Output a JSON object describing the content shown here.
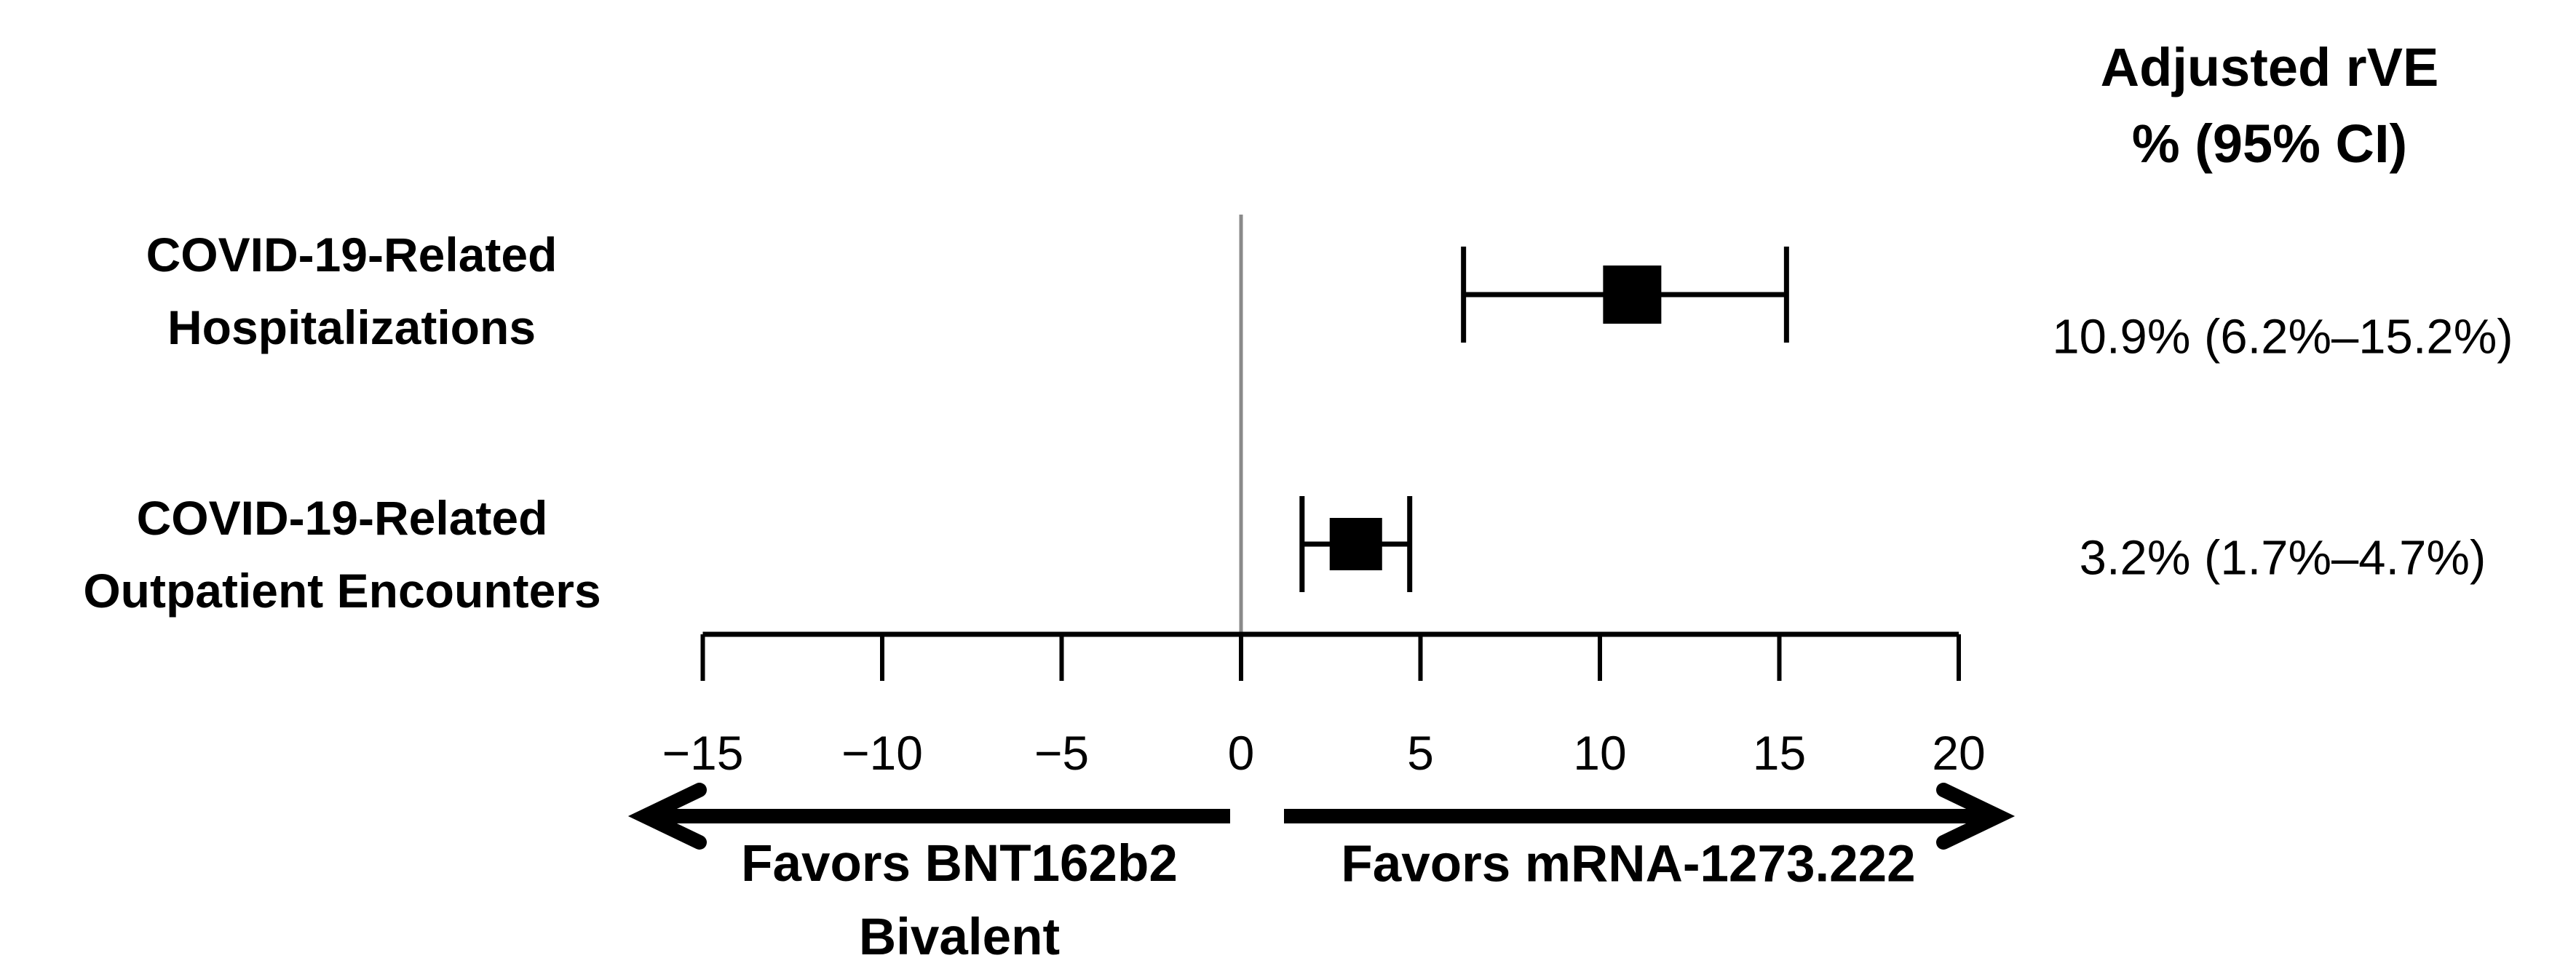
{
  "chart_data": {
    "type": "forest",
    "title": "Adjusted rVE % (95% CI)",
    "header_lines": [
      "Adjusted rVE",
      "% (95% CI)"
    ],
    "axis": {
      "min": -15,
      "max": 20,
      "ticks": [
        -15,
        -10,
        -5,
        0,
        5,
        10,
        15,
        20
      ],
      "tick_labels": [
        "−15",
        "−10",
        "−5",
        "0",
        "5",
        "10",
        "15",
        "20"
      ],
      "reference_line": 0
    },
    "rows": [
      {
        "label_lines": [
          "COVID-19-Related",
          "Hospitalizations"
        ],
        "estimate": 10.9,
        "ci_low": 6.2,
        "ci_high": 15.2,
        "value_text": "10.9% (6.2%–15.2%)",
        "marker_size": 80
      },
      {
        "label_lines": [
          "COVID-19-Related",
          "Outpatient Encounters"
        ],
        "estimate": 3.2,
        "ci_low": 1.7,
        "ci_high": 4.7,
        "value_text": "3.2% (1.7%–4.7%)",
        "marker_size": 72
      }
    ],
    "annotations": {
      "favors_left_lines": [
        "Favors BNT162b2",
        "Bivalent"
      ],
      "favors_right": "Favors mRNA-1273.222"
    },
    "colors": {
      "marker": "#000000",
      "axis": "#000000",
      "reference_line": "#8a8a8a",
      "text": "#000000"
    }
  }
}
